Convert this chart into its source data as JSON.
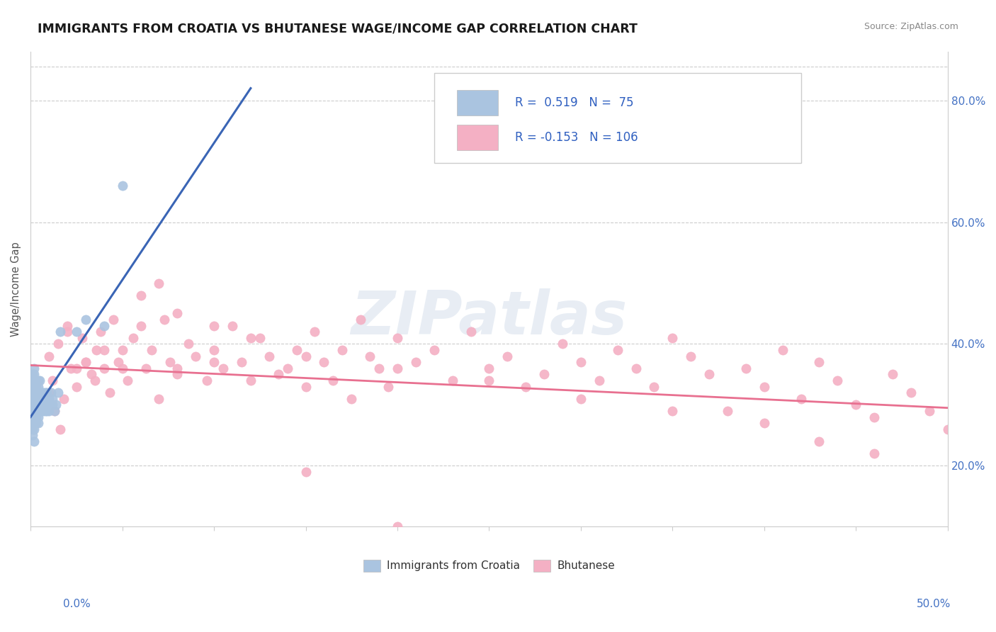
{
  "title": "IMMIGRANTS FROM CROATIA VS BHUTANESE WAGE/INCOME GAP CORRELATION CHART",
  "source": "Source: ZipAtlas.com",
  "ylabel": "Wage/Income Gap",
  "yaxis_ticks": [
    "20.0%",
    "40.0%",
    "60.0%",
    "80.0%"
  ],
  "yaxis_values": [
    0.2,
    0.4,
    0.6,
    0.8
  ],
  "xlim": [
    0.0,
    0.5
  ],
  "ylim": [
    0.1,
    0.88
  ],
  "legend_blue_label": "Immigrants from Croatia",
  "legend_pink_label": "Bhutanese",
  "r_blue": 0.519,
  "n_blue": 75,
  "r_pink": -0.153,
  "n_pink": 106,
  "blue_color": "#aac4e0",
  "pink_color": "#f4b0c4",
  "blue_line_color": "#3a65b5",
  "pink_line_color": "#e87090",
  "watermark": "ZIPatlas",
  "background_color": "#ffffff",
  "title_color": "#1a1a1a",
  "title_fontsize": 12.5,
  "blue_scatter": {
    "x": [
      0.001,
      0.001,
      0.001,
      0.001,
      0.001,
      0.001,
      0.001,
      0.001,
      0.001,
      0.001,
      0.001,
      0.002,
      0.002,
      0.002,
      0.002,
      0.002,
      0.002,
      0.002,
      0.002,
      0.002,
      0.002,
      0.002,
      0.002,
      0.003,
      0.003,
      0.003,
      0.003,
      0.003,
      0.003,
      0.003,
      0.003,
      0.004,
      0.004,
      0.004,
      0.004,
      0.004,
      0.004,
      0.004,
      0.004,
      0.005,
      0.005,
      0.005,
      0.005,
      0.005,
      0.006,
      0.006,
      0.006,
      0.006,
      0.007,
      0.007,
      0.007,
      0.007,
      0.008,
      0.008,
      0.008,
      0.008,
      0.009,
      0.009,
      0.009,
      0.009,
      0.01,
      0.01,
      0.01,
      0.011,
      0.011,
      0.012,
      0.012,
      0.013,
      0.014,
      0.015,
      0.016,
      0.025,
      0.03,
      0.04,
      0.05
    ],
    "y": [
      0.28,
      0.3,
      0.31,
      0.32,
      0.33,
      0.29,
      0.27,
      0.34,
      0.26,
      0.35,
      0.25,
      0.3,
      0.31,
      0.29,
      0.32,
      0.28,
      0.33,
      0.34,
      0.27,
      0.26,
      0.35,
      0.36,
      0.24,
      0.3,
      0.31,
      0.29,
      0.32,
      0.28,
      0.33,
      0.34,
      0.27,
      0.3,
      0.31,
      0.29,
      0.32,
      0.28,
      0.33,
      0.34,
      0.27,
      0.3,
      0.31,
      0.29,
      0.32,
      0.34,
      0.3,
      0.31,
      0.29,
      0.32,
      0.3,
      0.31,
      0.29,
      0.32,
      0.3,
      0.31,
      0.29,
      0.32,
      0.3,
      0.31,
      0.29,
      0.32,
      0.3,
      0.31,
      0.29,
      0.3,
      0.32,
      0.3,
      0.31,
      0.29,
      0.3,
      0.32,
      0.42,
      0.42,
      0.44,
      0.43,
      0.66
    ]
  },
  "pink_scatter": {
    "x": [
      0.01,
      0.012,
      0.015,
      0.018,
      0.02,
      0.022,
      0.025,
      0.028,
      0.03,
      0.033,
      0.036,
      0.038,
      0.04,
      0.043,
      0.045,
      0.048,
      0.05,
      0.053,
      0.056,
      0.06,
      0.063,
      0.066,
      0.07,
      0.073,
      0.076,
      0.08,
      0.086,
      0.09,
      0.096,
      0.1,
      0.105,
      0.11,
      0.115,
      0.12,
      0.125,
      0.13,
      0.135,
      0.14,
      0.145,
      0.15,
      0.155,
      0.16,
      0.165,
      0.17,
      0.175,
      0.18,
      0.185,
      0.19,
      0.195,
      0.2,
      0.21,
      0.22,
      0.23,
      0.24,
      0.25,
      0.26,
      0.27,
      0.28,
      0.29,
      0.3,
      0.31,
      0.32,
      0.33,
      0.34,
      0.35,
      0.36,
      0.37,
      0.38,
      0.39,
      0.4,
      0.41,
      0.42,
      0.43,
      0.44,
      0.45,
      0.46,
      0.47,
      0.48,
      0.49,
      0.5,
      0.01,
      0.013,
      0.016,
      0.02,
      0.025,
      0.03,
      0.035,
      0.04,
      0.05,
      0.06,
      0.07,
      0.08,
      0.1,
      0.12,
      0.15,
      0.2,
      0.25,
      0.3,
      0.35,
      0.4,
      0.43,
      0.46,
      0.08,
      0.1,
      0.15,
      0.2
    ],
    "y": [
      0.38,
      0.34,
      0.4,
      0.31,
      0.43,
      0.36,
      0.33,
      0.41,
      0.37,
      0.35,
      0.39,
      0.42,
      0.36,
      0.32,
      0.44,
      0.37,
      0.39,
      0.34,
      0.41,
      0.43,
      0.36,
      0.39,
      0.31,
      0.44,
      0.37,
      0.35,
      0.4,
      0.38,
      0.34,
      0.39,
      0.36,
      0.43,
      0.37,
      0.34,
      0.41,
      0.38,
      0.35,
      0.36,
      0.39,
      0.33,
      0.42,
      0.37,
      0.34,
      0.39,
      0.31,
      0.44,
      0.38,
      0.36,
      0.33,
      0.41,
      0.37,
      0.39,
      0.34,
      0.42,
      0.36,
      0.38,
      0.33,
      0.35,
      0.4,
      0.37,
      0.34,
      0.39,
      0.36,
      0.33,
      0.41,
      0.38,
      0.35,
      0.29,
      0.36,
      0.33,
      0.39,
      0.31,
      0.37,
      0.34,
      0.3,
      0.28,
      0.35,
      0.32,
      0.29,
      0.26,
      0.32,
      0.29,
      0.26,
      0.42,
      0.36,
      0.37,
      0.34,
      0.39,
      0.36,
      0.48,
      0.5,
      0.45,
      0.43,
      0.41,
      0.38,
      0.36,
      0.34,
      0.31,
      0.29,
      0.27,
      0.24,
      0.22,
      0.36,
      0.37,
      0.19,
      0.1
    ]
  },
  "blue_line_x": [
    0.0,
    0.12
  ],
  "blue_line_y_start": 0.28,
  "blue_line_slope": 4.5,
  "pink_line_x_start": 0.0,
  "pink_line_x_end": 0.5,
  "pink_line_y_start": 0.365,
  "pink_line_y_end": 0.295
}
